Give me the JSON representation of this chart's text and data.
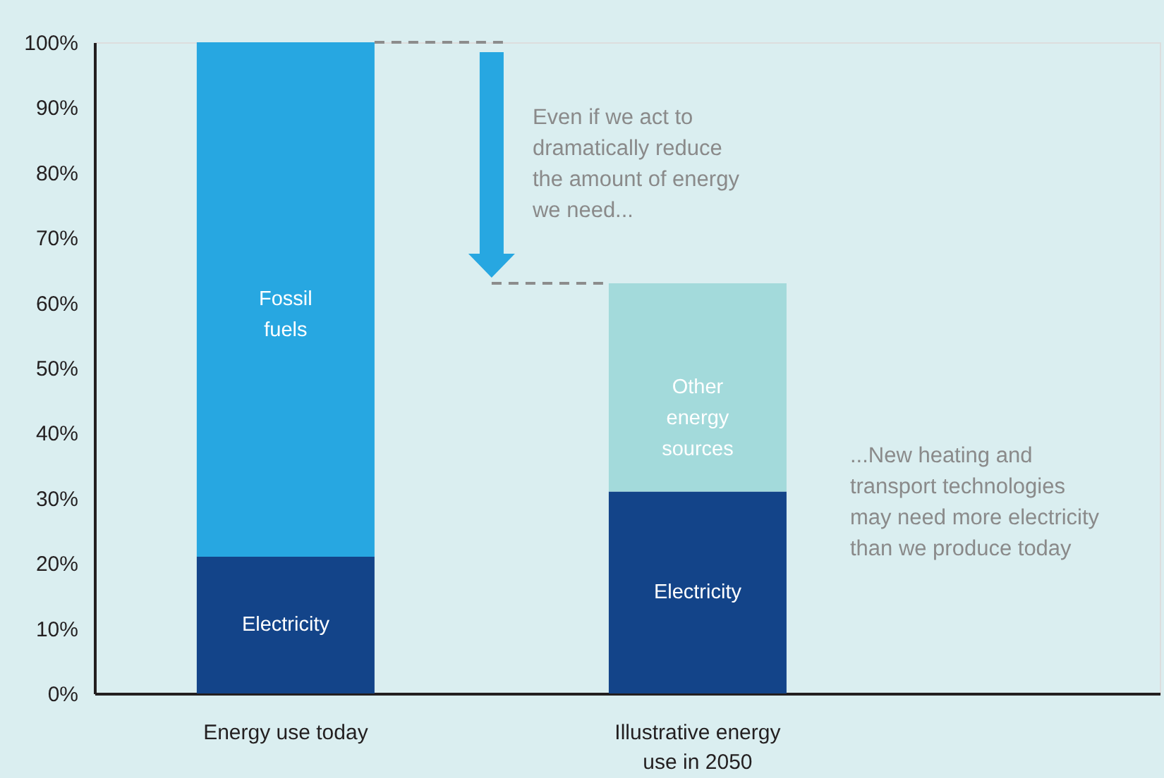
{
  "chart_data": {
    "type": "bar",
    "stacked": true,
    "categories": [
      "Energy use today",
      "Illustrative energy use in 2050"
    ],
    "series": [
      {
        "name": "Electricity",
        "color": "#134489",
        "values": [
          21,
          31
        ]
      },
      {
        "name": "Fossil fuels",
        "color": "#27a7e1",
        "values": [
          79,
          null
        ]
      },
      {
        "name": "Other energy sources",
        "color": "#a3dadb",
        "values": [
          null,
          32
        ]
      }
    ],
    "ylim": [
      0,
      100
    ],
    "yticks": [
      {
        "value": 0,
        "label": "0%"
      },
      {
        "value": 10,
        "label": "10%"
      },
      {
        "value": 20,
        "label": "20%"
      },
      {
        "value": 30,
        "label": "30%"
      },
      {
        "value": 40,
        "label": "40%"
      },
      {
        "value": 50,
        "label": "50%"
      },
      {
        "value": 60,
        "label": "60%"
      },
      {
        "value": 70,
        "label": "70%"
      },
      {
        "value": 80,
        "label": "80%"
      },
      {
        "value": 90,
        "label": "90%"
      },
      {
        "value": 100,
        "label": "100%"
      }
    ],
    "ref_lines": [
      {
        "axis": "y",
        "value": 100,
        "color": "#8c8c8c",
        "line_style": "dashed"
      },
      {
        "axis": "y",
        "value": 63,
        "color": "#8c8c8c",
        "line_style": "dashed"
      }
    ],
    "annotations": [
      "Even if we act to dramatically reduce the amount of energy we need...",
      "...New heating and transport technologies may need more electricity than we produce today"
    ]
  }
}
